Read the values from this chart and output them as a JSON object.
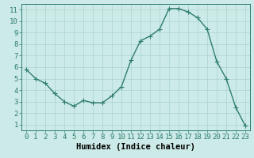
{
  "x": [
    0,
    1,
    2,
    3,
    4,
    5,
    6,
    7,
    8,
    9,
    10,
    11,
    12,
    13,
    14,
    15,
    16,
    17,
    18,
    19,
    20,
    21,
    22,
    23
  ],
  "y": [
    5.8,
    5.0,
    4.6,
    3.7,
    3.0,
    2.6,
    3.1,
    2.9,
    2.9,
    3.5,
    4.3,
    6.6,
    8.3,
    8.7,
    9.3,
    11.1,
    11.1,
    10.8,
    10.3,
    9.3,
    6.5,
    5.0,
    2.5,
    0.9
  ],
  "line_color": "#2e7d6e",
  "marker": "+",
  "marker_size": 4,
  "bg_color": "#cceae7",
  "grid_color": "#aad4d0",
  "xlabel": "Humidex (Indice chaleur)",
  "xlim": [
    -0.5,
    23.5
  ],
  "ylim": [
    0.5,
    11.5
  ],
  "yticks": [
    1,
    2,
    3,
    4,
    5,
    6,
    7,
    8,
    9,
    10,
    11
  ],
  "xticks": [
    0,
    1,
    2,
    3,
    4,
    5,
    6,
    7,
    8,
    9,
    10,
    11,
    12,
    13,
    14,
    15,
    16,
    17,
    18,
    19,
    20,
    21,
    22,
    23
  ],
  "tick_fontsize": 6.5,
  "label_fontsize": 7.5,
  "spine_color": "#2e7d6e",
  "linewidth": 1.0,
  "marker_linewidth": 0.8
}
